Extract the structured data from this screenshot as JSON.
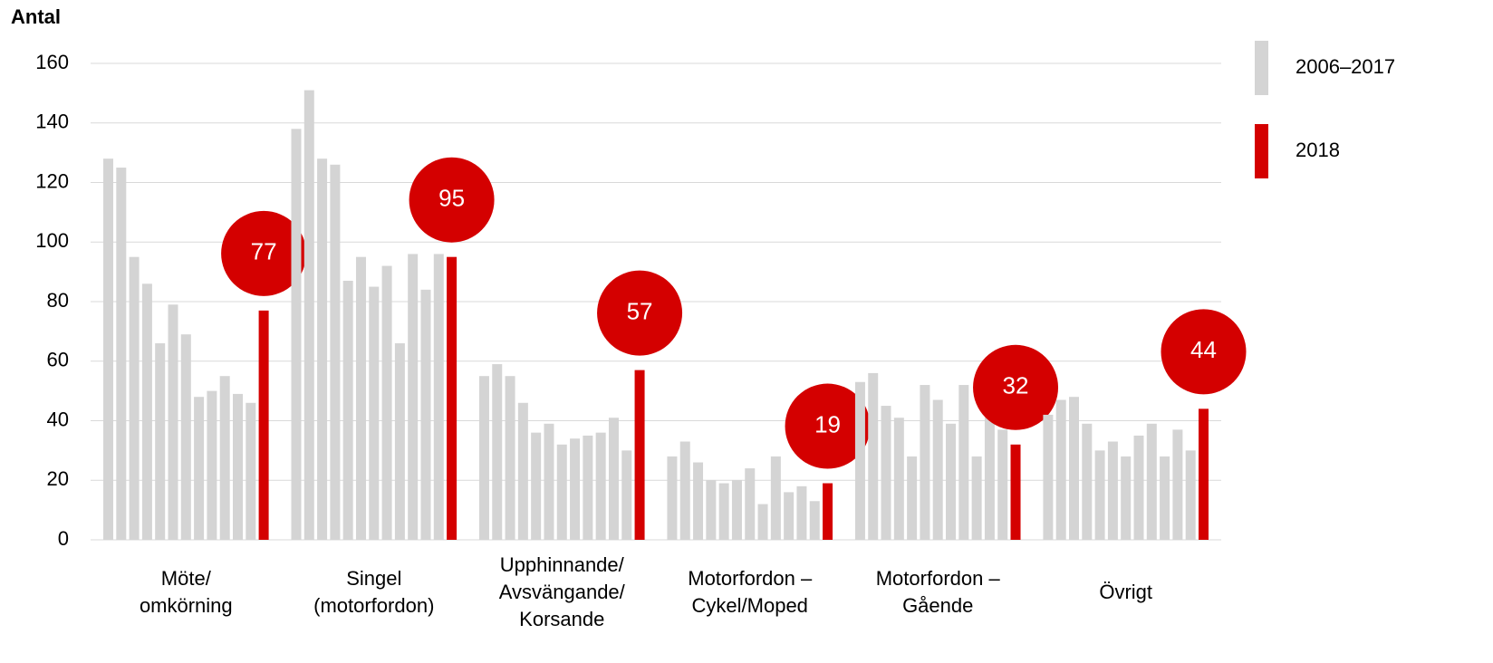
{
  "chart_data": {
    "type": "bar",
    "y_label": "Antal",
    "categories": [
      [
        "Möte/",
        "omkörning"
      ],
      [
        "Singel",
        "(motorfordon)"
      ],
      [
        "Upphinnande/",
        "Avsvängande/",
        "Korsande"
      ],
      [
        "Motorfordon –",
        "Cykel/Moped"
      ],
      [
        "Motorfordon –",
        "Gående"
      ],
      [
        "Övrigt"
      ]
    ],
    "series": [
      {
        "name": "2006–2017",
        "color": "#d4d4d4",
        "values": [
          [
            128,
            125,
            95,
            86,
            66,
            79,
            69,
            48,
            50,
            55,
            49,
            46
          ],
          [
            138,
            151,
            128,
            126,
            87,
            95,
            85,
            92,
            66,
            96,
            84,
            96
          ],
          [
            55,
            59,
            55,
            46,
            36,
            39,
            32,
            34,
            35,
            36,
            41,
            30
          ],
          [
            28,
            33,
            26,
            20,
            19,
            20,
            24,
            12,
            28,
            16,
            18,
            13
          ],
          [
            53,
            56,
            45,
            41,
            28,
            52,
            47,
            39,
            52,
            28,
            41,
            37
          ],
          [
            42,
            47,
            48,
            39,
            30,
            33,
            28,
            35,
            39,
            28,
            37,
            30
          ]
        ]
      },
      {
        "name": "2018",
        "color": "#d40000",
        "values": [
          77,
          95,
          57,
          19,
          32,
          44
        ]
      }
    ],
    "ylim": [
      0,
      160
    ],
    "yticks": [
      0,
      20,
      40,
      60,
      80,
      100,
      120,
      140,
      160
    ],
    "grid": true,
    "legend": "right"
  }
}
